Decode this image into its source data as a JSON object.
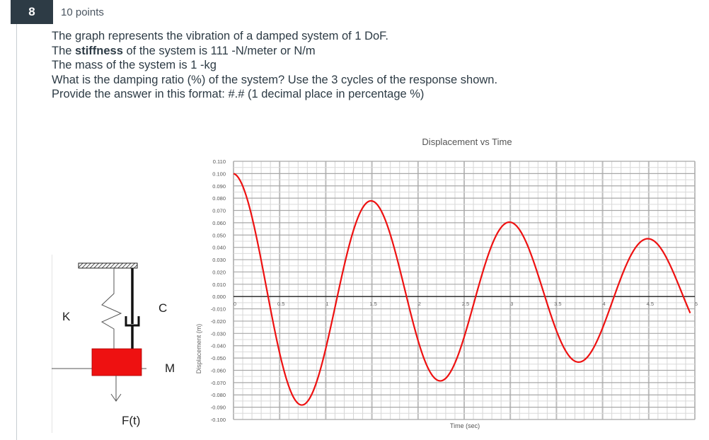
{
  "question": {
    "number": "8",
    "points": "10 points",
    "lines": [
      "The graph represents the vibration of a damped system of 1 DoF.",
      "The ",
      "stiffness",
      " of the system is 111 -N/meter or N/m",
      "The mass of the system is 1 -kg",
      "What is the damping ratio (%) of the system?  Use the 3 cycles of the response shown.",
      "Provide the answer in this format: #.#  (1 decimal place in percentage %)"
    ]
  },
  "diagram": {
    "spring_label": "K",
    "damper_label": "C",
    "mass_label": "M",
    "force_label": "F(t)",
    "mass_color": "#ee1111"
  },
  "chart_data": {
    "type": "line",
    "title": "Displacement vs Time",
    "xlabel": "Time (sec)",
    "ylabel": "Displacement (m)",
    "xlim": [
      0,
      5
    ],
    "ylim": [
      -0.1,
      0.11
    ],
    "grid": true,
    "legend": "none",
    "x_ticks": [
      "0",
      "0.5",
      "1",
      "1.5",
      "2",
      "2.5",
      "3",
      "3.5",
      "4",
      "4.5",
      "5"
    ],
    "y_ticks": [
      "0.110",
      "0.100",
      "0.090",
      "0.080",
      "0.070",
      "0.060",
      "0.050",
      "0.040",
      "0.030",
      "0.020",
      "0.010",
      "0.000",
      "-0.010",
      "-0.020",
      "-0.030",
      "-0.040",
      "-0.050",
      "-0.060",
      "-0.070",
      "-0.080",
      "-0.090",
      "-0.100"
    ],
    "line_color": "#ee1111",
    "series": [
      {
        "name": "Displacement",
        "x": [
          0,
          0.375,
          0.75,
          1.125,
          1.5,
          1.875,
          2.25,
          2.625,
          3.0,
          3.375,
          3.75,
          4.125,
          4.5,
          4.875,
          4.95
        ],
        "values": [
          0.1,
          0.0,
          -0.088,
          0.0,
          0.078,
          0.0,
          -0.068,
          0.0,
          0.06,
          0.0,
          -0.053,
          0.0,
          0.047,
          0.0,
          -0.01
        ]
      }
    ],
    "peaks": [
      {
        "t": 0.0,
        "x": 0.1
      },
      {
        "t": 1.5,
        "x": 0.078
      },
      {
        "t": 3.0,
        "x": 0.06
      },
      {
        "t": 4.5,
        "x": 0.047
      }
    ],
    "troughs": [
      {
        "t": 0.75,
        "x": -0.088
      },
      {
        "t": 2.25,
        "x": -0.068
      },
      {
        "t": 3.75,
        "x": -0.053
      }
    ],
    "period_sec": 1.5
  }
}
